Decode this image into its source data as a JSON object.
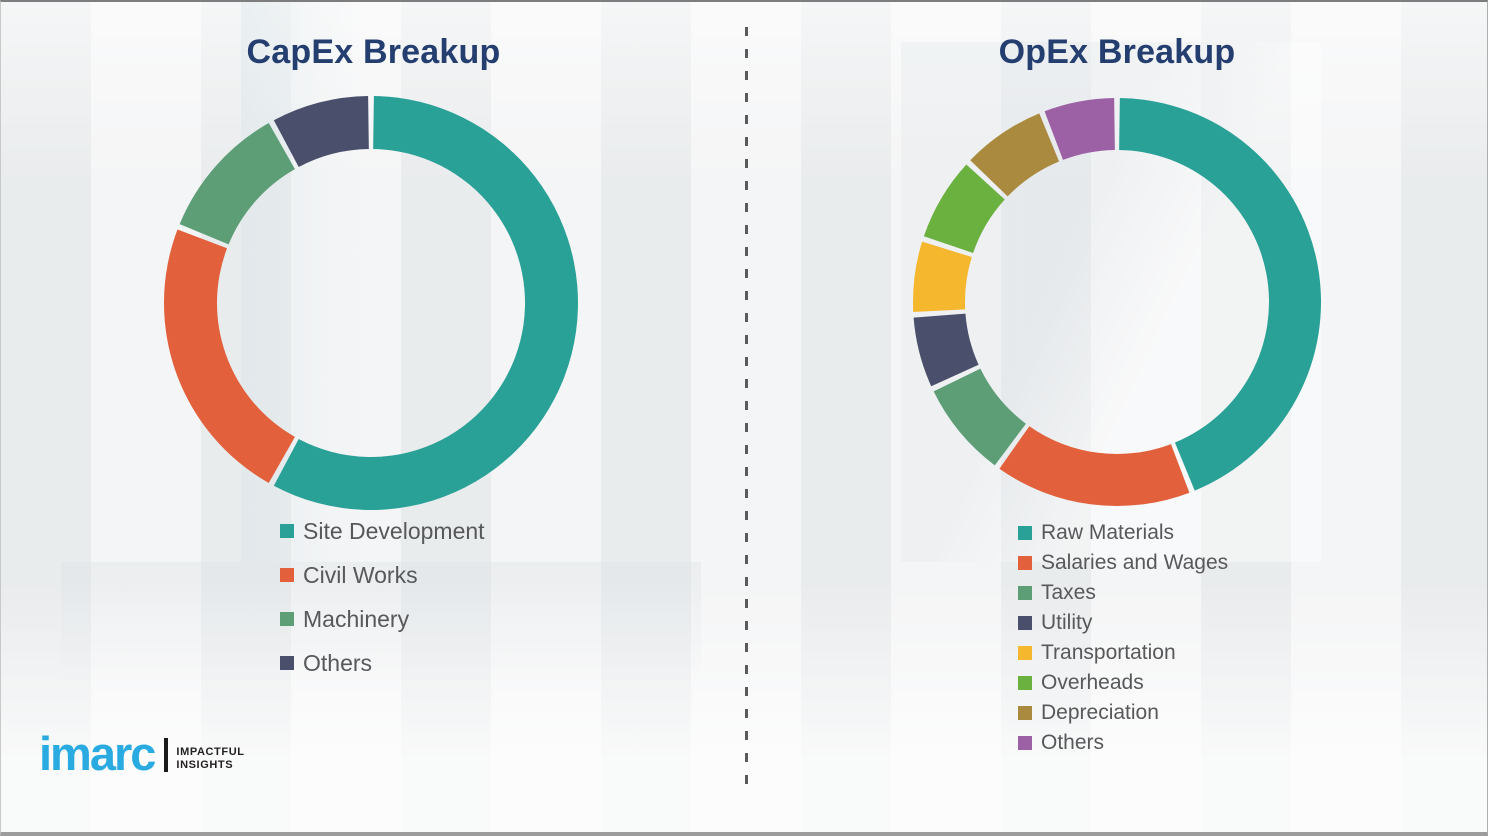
{
  "page": {
    "background_color": "#f1f2f3",
    "title_color": "#243e70",
    "legend_text_color": "#57585a"
  },
  "branding": {
    "logo_text": "imarc",
    "tagline_line1": "IMPACTFUL",
    "tagline_line2": "INSIGHTS",
    "logo_color": "#29abe2"
  },
  "chart_data": [
    {
      "type": "pie",
      "subtype": "donut",
      "title": "CapEx Breakup",
      "direction": "clockwise",
      "start_angle_deg": 0,
      "legend_position": "below-left",
      "units": "percent (estimated from arc angles)",
      "segments": [
        {
          "label": "Site Development",
          "value": 58,
          "color": "#2aa197"
        },
        {
          "label": "Civil Works",
          "value": 23,
          "color": "#e2603c"
        },
        {
          "label": "Machinery",
          "value": 11,
          "color": "#5d9e77"
        },
        {
          "label": "Others",
          "value": 8,
          "color": "#4a506b"
        }
      ]
    },
    {
      "type": "pie",
      "subtype": "donut",
      "title": "OpEx Breakup",
      "direction": "clockwise",
      "start_angle_deg": 0,
      "legend_position": "below-left",
      "units": "percent (estimated from arc angles)",
      "segments": [
        {
          "label": "Raw Materials",
          "value": 44,
          "color": "#2aa197"
        },
        {
          "label": "Salaries and Wages",
          "value": 16,
          "color": "#e2603c"
        },
        {
          "label": "Taxes",
          "value": 8,
          "color": "#5d9e77"
        },
        {
          "label": "Utility",
          "value": 6,
          "color": "#4a506b"
        },
        {
          "label": "Transportation",
          "value": 6,
          "color": "#f4b72d"
        },
        {
          "label": "Overheads",
          "value": 7,
          "color": "#6ab140"
        },
        {
          "label": "Depreciation",
          "value": 7,
          "color": "#a98a3e"
        },
        {
          "label": "Others",
          "value": 6,
          "color": "#9c60a4"
        }
      ]
    }
  ]
}
